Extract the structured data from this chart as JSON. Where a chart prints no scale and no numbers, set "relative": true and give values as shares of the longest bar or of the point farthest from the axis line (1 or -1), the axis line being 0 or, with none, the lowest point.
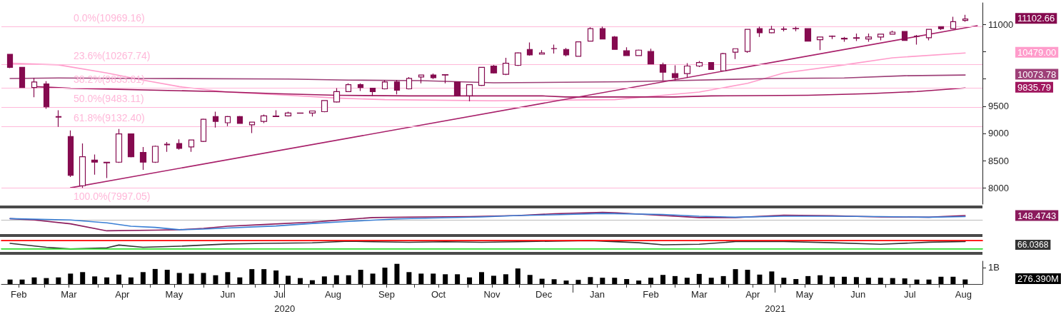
{
  "chart_data": [
    {
      "type": "candlestick",
      "color": "#850a4f",
      "tick_labels": "y",
      "xlim": [
        "2020-02-05",
        "2021-08-26"
      ],
      "ylim": [
        7700,
        11400
      ],
      "yticks": [
        8000,
        8500,
        9000,
        9500,
        {
          "value": 10000,
          "label": null
        },
        {
          "value": 10500,
          "label": null
        },
        11000
      ],
      "x": [
        "2020-02-10",
        "2020-02-17",
        "2020-02-24",
        "2020-03-02",
        "2020-03-09",
        "2020-03-16",
        "2020-03-23",
        "2020-03-30",
        "2020-04-06",
        "2020-04-13",
        "2020-04-20",
        "2020-04-27",
        "2020-05-04",
        "2020-05-11",
        "2020-05-18",
        "2020-05-25",
        "2020-06-01",
        "2020-06-08",
        "2020-06-15",
        "2020-06-22",
        "2020-06-29",
        "2020-07-06",
        "2020-07-13",
        "2020-07-20",
        "2020-07-27",
        "2020-08-03",
        "2020-08-10",
        "2020-08-17",
        "2020-08-24",
        "2020-08-31",
        "2020-09-07",
        "2020-09-14",
        "2020-09-21",
        "2020-09-28",
        "2020-10-05",
        "2020-10-12",
        "2020-10-19",
        "2020-10-26",
        "2020-11-02",
        "2020-11-09",
        "2020-11-16",
        "2020-11-23",
        "2020-11-30",
        "2020-12-07",
        "2020-12-14",
        "2020-12-21",
        "2020-12-28",
        "2021-01-04",
        "2021-01-11",
        "2021-01-18",
        "2021-01-25",
        "2021-02-01",
        "2021-02-08",
        "2021-02-15",
        "2021-02-22",
        "2021-03-01",
        "2021-03-08",
        "2021-03-15",
        "2021-03-22",
        "2021-03-29",
        "2021-04-05",
        "2021-04-12",
        "2021-04-19",
        "2021-04-26",
        "2021-05-03",
        "2021-05-10",
        "2021-05-17",
        "2021-05-24",
        "2021-05-31",
        "2021-06-07",
        "2021-06-14",
        "2021-06-21",
        "2021-06-28",
        "2021-07-05",
        "2021-07-12",
        "2021-07-19",
        "2021-07-26",
        "2021-08-02",
        "2021-08-09",
        "2021-08-16"
      ],
      "ohlc": [
        [
          10455,
          10460,
          10200,
          10213
        ],
        [
          10213,
          10220,
          9840,
          9844
        ],
        [
          9844,
          10023,
          9666,
          9946
        ],
        [
          9908,
          9959,
          9450,
          9488
        ],
        [
          9300,
          9425,
          9120,
          9310
        ],
        [
          8941,
          9056,
          8200,
          8229
        ],
        [
          8038,
          8814,
          7997,
          8572
        ],
        [
          8509,
          8611,
          8242,
          8471
        ],
        [
          8458,
          8470,
          8178,
          8470
        ],
        [
          8471,
          9081,
          8458,
          8992
        ],
        [
          8992,
          9000,
          8560,
          8572
        ],
        [
          8649,
          8750,
          8331,
          8471
        ],
        [
          8471,
          8775,
          8458,
          8763
        ],
        [
          8789,
          8840,
          8661,
          8800
        ],
        [
          8814,
          8890,
          8700,
          8725
        ],
        [
          8750,
          8880,
          8661,
          8878
        ],
        [
          8852,
          9270,
          8840,
          9259
        ],
        [
          9310,
          9400,
          9107,
          9221
        ],
        [
          9196,
          9320,
          9132,
          9310
        ],
        [
          9310,
          9320,
          9180,
          9183
        ],
        [
          9158,
          9215,
          9005,
          9208
        ],
        [
          9221,
          9345,
          9190,
          9323
        ],
        [
          9310,
          9425,
          9305,
          9320
        ],
        [
          9323,
          9400,
          9310,
          9374
        ],
        [
          9370,
          9380,
          9365,
          9374
        ],
        [
          9374,
          9415,
          9310,
          9412
        ],
        [
          9399,
          9610,
          9390,
          9603
        ],
        [
          9577,
          9832,
          9565,
          9768
        ],
        [
          9768,
          9920,
          9760,
          9895
        ],
        [
          9895,
          9920,
          9780,
          9844
        ],
        [
          9832,
          9840,
          9692,
          9768
        ],
        [
          9819,
          9980,
          9810,
          9946
        ],
        [
          9946,
          9984,
          9717,
          9793
        ],
        [
          9819,
          10036,
          9810,
          10010
        ],
        [
          10036,
          10080,
          9921,
          10074
        ],
        [
          10074,
          10100,
          10000,
          10023
        ],
        [
          10074,
          10086,
          9921,
          10080
        ],
        [
          9946,
          9950,
          9690,
          9692
        ],
        [
          9692,
          9900,
          9590,
          9895
        ],
        [
          9883,
          10220,
          9870,
          10213
        ],
        [
          10239,
          10260,
          10100,
          10112
        ],
        [
          10086,
          10390,
          10070,
          10290
        ],
        [
          10252,
          10490,
          10240,
          10480
        ],
        [
          10544,
          10671,
          10430,
          10442
        ],
        [
          10455,
          10531,
          10450,
          10480
        ],
        [
          10557,
          10633,
          10468,
          10560
        ],
        [
          10544,
          10570,
          10417,
          10442
        ],
        [
          10417,
          10690,
          10410,
          10684
        ],
        [
          10697,
          10950,
          10690,
          10926
        ],
        [
          10926,
          10964,
          10730,
          10735
        ],
        [
          10773,
          10790,
          10540,
          10544
        ],
        [
          10519,
          10582,
          10425,
          10430
        ],
        [
          10430,
          10540,
          10425,
          10531
        ],
        [
          10506,
          10557,
          10270,
          10277
        ],
        [
          10264,
          10302,
          9972,
          10124
        ],
        [
          10099,
          10251,
          9972,
          10023
        ],
        [
          10099,
          10290,
          10023,
          10239
        ],
        [
          10239,
          10330,
          10220,
          10302
        ],
        [
          10302,
          10310,
          10170,
          10175
        ],
        [
          10150,
          10480,
          10140,
          10468
        ],
        [
          10493,
          10560,
          10366,
          10557
        ],
        [
          10506,
          10920,
          10480,
          10913
        ],
        [
          10926,
          10964,
          10773,
          10850
        ],
        [
          10850,
          10977,
          10840,
          10913
        ],
        [
          10913,
          10964,
          10875,
          10920
        ],
        [
          10930,
          10964,
          10880,
          10926
        ],
        [
          10926,
          10930,
          10690,
          10697
        ],
        [
          10722,
          10780,
          10531,
          10773
        ],
        [
          10786,
          10800,
          10735,
          10790
        ],
        [
          10735,
          10773,
          10684,
          10748
        ],
        [
          10748,
          10837,
          10697,
          10760
        ],
        [
          10735,
          10837,
          10684,
          10773
        ],
        [
          10773,
          10830,
          10710,
          10824
        ],
        [
          10824,
          10888,
          10820,
          10862
        ],
        [
          10875,
          10880,
          10700,
          10710
        ],
        [
          10786,
          10811,
          10633,
          10790
        ],
        [
          10760,
          10920,
          10710,
          10913
        ],
        [
          10964,
          10970,
          10900,
          10926
        ],
        [
          10926,
          11143,
          10920,
          11053
        ],
        [
          11078,
          11180,
          11053,
          11102.66
        ]
      ],
      "series": [
        {
          "type": "line",
          "color": "#ff9ccb",
          "x": [
            "2020-02-10",
            "2020-03-09",
            "2020-04-06",
            "2020-04-27",
            "2020-05-18",
            "2020-06-15",
            "2020-07-20",
            "2020-08-17",
            "2020-09-14",
            "2020-11-16",
            "2021-01-25",
            "2021-03-01",
            "2021-03-15",
            "2021-04-12",
            "2021-05-03",
            "2021-06-07",
            "2021-07-05",
            "2021-08-16"
          ],
          "values": [
            10290,
            10260,
            10110,
            9980,
            9860,
            9760,
            9700,
            9650,
            9620,
            9600,
            9620,
            9720,
            9760,
            9920,
            10110,
            10260,
            10390,
            10479
          ]
        },
        {
          "type": "line",
          "color": "#9e4078",
          "x": [
            "2020-02-10",
            "2020-03-09",
            "2020-04-27",
            "2020-07-20",
            "2020-08-24",
            "2020-10-05",
            "2020-10-26",
            "2020-11-16",
            "2021-02-01",
            "2021-03-01",
            "2021-04-26",
            "2021-06-07",
            "2021-07-12",
            "2021-08-16"
          ],
          "values": [
            10010,
            10020,
            10010,
            10000,
            9980,
            9970,
            9950,
            9930,
            9950,
            9970,
            10010,
            10020,
            10060,
            10073.78
          ]
        },
        {
          "type": "line",
          "color": "#a0175e",
          "x": [
            "2020-02-24",
            "2020-03-16",
            "2020-06-08",
            "2020-07-13",
            "2020-08-17",
            "2020-09-28",
            "2020-12-14",
            "2020-12-28",
            "2021-03-01",
            "2021-03-22",
            "2021-05-17",
            "2021-06-21",
            "2021-07-19",
            "2021-08-16"
          ],
          "values": [
            9860,
            9830,
            9770,
            9730,
            9700,
            9690,
            9690,
            9670,
            9670,
            9690,
            9700,
            9730,
            9770,
            9835.79
          ]
        },
        {
          "type": "line",
          "color": "#a8206a",
          "x": [
            "2020-03-16",
            "2021-08-23"
          ],
          "values": [
            8000,
            10980
          ]
        }
      ],
      "ref_lines": [
        {
          "axis": "y",
          "value": 10969.16,
          "label": "0.0%(10969.16)",
          "color": "#ffb8d9"
        },
        {
          "axis": "y",
          "value": 10267.74,
          "label": "23.6%(10267.74)",
          "color": "#ffb8d9"
        },
        {
          "axis": "y",
          "value": 9833.81,
          "label": "38.2%(9833.81)",
          "color": "#ffb8d9"
        },
        {
          "axis": "y",
          "value": 9483.11,
          "label": "50.0%(9483.11)",
          "color": "#ffb8d9"
        },
        {
          "axis": "y",
          "value": 9132.4,
          "label": "61.8%(9132.40)",
          "color": "#ffb8d9"
        },
        {
          "axis": "y",
          "value": 7997.05,
          "label": "100.0%(7997.05)",
          "color": "#ffb8d9"
        }
      ],
      "annotations": [
        "11102.66",
        "10479.00",
        "10073.78",
        "9835.79"
      ]
    },
    {
      "type": "line",
      "relative": true,
      "tick_labels": false,
      "xlim": [
        "2020-02-05",
        "2021-08-26"
      ],
      "series": [
        {
          "color": "#8b1a5c",
          "x": [
            "2020-02-10",
            "2020-02-24",
            "2020-03-16",
            "2020-04-06",
            "2020-05-04",
            "2020-05-18",
            "2020-06-01",
            "2020-06-15",
            "2020-07-06",
            "2020-08-03",
            "2020-08-24",
            "2020-09-07",
            "2020-10-05",
            "2020-11-02",
            "2020-11-30",
            "2020-12-21",
            "2021-01-18",
            "2021-01-25",
            "2021-02-22",
            "2021-03-15",
            "2021-04-05",
            "2021-05-03",
            "2021-05-31",
            "2021-06-28",
            "2021-07-26",
            "2021-08-16"
          ],
          "values": [
            0.13,
            0,
            -0.35,
            -1,
            -0.94,
            -0.9,
            -0.77,
            -0.58,
            -0.42,
            -0.19,
            0.06,
            0.23,
            0.29,
            0.32,
            0.42,
            0.58,
            0.71,
            0.68,
            0.42,
            0.23,
            0.23,
            0.45,
            0.39,
            0.29,
            0.26,
            0.42
          ]
        },
        {
          "color": "#3a7fd5",
          "x": [
            "2020-02-10",
            "2020-03-16",
            "2020-04-06",
            "2020-04-20",
            "2020-05-04",
            "2020-05-18",
            "2020-06-01",
            "2020-06-15",
            "2020-07-13",
            "2020-08-03",
            "2020-08-24",
            "2020-09-21",
            "2020-10-12",
            "2020-11-09",
            "2020-11-30",
            "2020-12-21",
            "2021-01-18",
            "2021-02-22",
            "2021-03-15",
            "2021-04-05",
            "2021-05-03",
            "2021-05-31",
            "2021-06-28",
            "2021-07-26",
            "2021-08-16"
          ],
          "values": [
            0.13,
            0,
            -0.26,
            -0.58,
            -0.68,
            -0.9,
            -0.84,
            -0.74,
            -0.55,
            -0.32,
            -0.13,
            0.1,
            0.19,
            0.29,
            0.42,
            0.48,
            0.61,
            0.52,
            0.35,
            0.26,
            0.35,
            0.35,
            0.32,
            0.26,
            0.32
          ]
        }
      ],
      "annotations": [
        "148.4743"
      ]
    },
    {
      "type": "line",
      "relative": true,
      "tick_labels": false,
      "xlim": [
        "2020-02-05",
        "2021-08-26"
      ],
      "series": [
        {
          "color": "#333333",
          "x": [
            "2020-02-10",
            "2020-03-02",
            "2020-03-16",
            "2020-04-06",
            "2020-04-13",
            "2020-04-27",
            "2020-05-18",
            "2020-06-15",
            "2020-07-06",
            "2020-08-03",
            "2020-08-24",
            "2020-09-07",
            "2020-09-28",
            "2020-10-19",
            "2020-11-09",
            "2020-11-30",
            "2020-12-21",
            "2021-01-11",
            "2021-02-08",
            "2021-02-22",
            "2021-03-15",
            "2021-04-05",
            "2021-05-03",
            "2021-05-31",
            "2021-06-28",
            "2021-07-26",
            "2021-08-16"
          ],
          "values": [
            0.67,
            0.2,
            0,
            0.13,
            0.47,
            0.2,
            0.33,
            0.6,
            0.67,
            0.73,
            0.93,
            0.87,
            0.8,
            0.87,
            0.8,
            0.87,
            0.94,
            1,
            0.75,
            0.5,
            0.56,
            0.88,
            0.88,
            0.75,
            0.56,
            0.81,
            0.88
          ]
        },
        {
          "color": "#ff0000",
          "x": [
            "2020-02-05",
            "2021-08-26"
          ],
          "values": [
            1,
            1
          ]
        },
        {
          "color": "#33dd33",
          "x": [
            "2020-02-05",
            "2021-08-26"
          ],
          "values": [
            0,
            0
          ]
        }
      ],
      "annotations": [
        "66.0368"
      ]
    },
    {
      "type": "bar",
      "color": "#000000",
      "xlim": [
        "2020-02-05",
        "2021-08-26"
      ],
      "ylim": [
        0,
        1380000000
      ],
      "yticks": [
        {
          "value": 1000000000,
          "label": "1B"
        }
      ],
      "xticks": [
        {
          "value": "2020-02-15",
          "label": "Feb"
        },
        {
          "value": "2020-03-01",
          "label": null
        },
        {
          "value": "2020-03-15",
          "label": "Mar"
        },
        {
          "value": "2020-04-01",
          "label": null
        },
        {
          "value": "2020-04-15",
          "label": "Apr"
        },
        {
          "value": "2020-05-01",
          "label": null
        },
        {
          "value": "2020-05-15",
          "label": "May"
        },
        {
          "value": "2020-06-01",
          "label": null
        },
        {
          "value": "2020-06-15",
          "label": "Jun"
        },
        {
          "value": "2020-07-01",
          "label": null
        },
        {
          "value": "2020-07-15",
          "label": "Jul"
        },
        {
          "value": "2020-08-01",
          "label": null
        },
        {
          "value": "2020-08-15",
          "label": "Aug"
        },
        {
          "value": "2020-09-01",
          "label": null
        },
        {
          "value": "2020-09-15",
          "label": "Sep"
        },
        {
          "value": "2020-10-01",
          "label": null
        },
        {
          "value": "2020-10-15",
          "label": "Oct"
        },
        {
          "value": "2020-11-01",
          "label": null
        },
        {
          "value": "2020-11-15",
          "label": "Nov"
        },
        {
          "value": "2020-12-01",
          "label": null
        },
        {
          "value": "2020-12-15",
          "label": "Dec"
        },
        {
          "value": "2021-01-01",
          "label": null
        },
        {
          "value": "2021-01-15",
          "label": "Jan"
        },
        {
          "value": "2021-02-01",
          "label": null
        },
        {
          "value": "2021-02-15",
          "label": "Feb"
        },
        {
          "value": "2021-03-01",
          "label": null
        },
        {
          "value": "2021-03-15",
          "label": "Mar"
        },
        {
          "value": "2021-04-01",
          "label": null
        },
        {
          "value": "2021-04-15",
          "label": "Apr"
        },
        {
          "value": "2021-05-01",
          "label": null
        },
        {
          "value": "2021-05-15",
          "label": "May"
        },
        {
          "value": "2021-06-01",
          "label": null
        },
        {
          "value": "2021-06-15",
          "label": "Jun"
        },
        {
          "value": "2021-07-01",
          "label": null
        },
        {
          "value": "2021-07-15",
          "label": "Jul"
        },
        {
          "value": "2021-08-01",
          "label": null
        },
        {
          "value": "2021-08-15",
          "label": "Aug"
        }
      ],
      "x2lim": [
        "2020-02-05",
        "2021-08-26"
      ],
      "x2ticks": [
        {
          "value": "2020-07-18",
          "label": "2020"
        },
        {
          "value": "2021-01-01",
          "label": null
        },
        {
          "value": "2021-04-28",
          "label": "2021"
        }
      ],
      "x": [
        "2020-02-10",
        "2020-02-17",
        "2020-02-24",
        "2020-03-02",
        "2020-03-09",
        "2020-03-16",
        "2020-03-23",
        "2020-03-30",
        "2020-04-06",
        "2020-04-13",
        "2020-04-20",
        "2020-04-27",
        "2020-05-04",
        "2020-05-11",
        "2020-05-18",
        "2020-05-25",
        "2020-06-01",
        "2020-06-08",
        "2020-06-15",
        "2020-06-22",
        "2020-06-29",
        "2020-07-06",
        "2020-07-13",
        "2020-07-20",
        "2020-07-27",
        "2020-08-03",
        "2020-08-10",
        "2020-08-17",
        "2020-08-24",
        "2020-08-31",
        "2020-09-07",
        "2020-09-14",
        "2020-09-21",
        "2020-09-28",
        "2020-10-05",
        "2020-10-12",
        "2020-10-19",
        "2020-10-26",
        "2020-11-02",
        "2020-11-09",
        "2020-11-16",
        "2020-11-23",
        "2020-11-30",
        "2020-12-07",
        "2020-12-14",
        "2020-12-21",
        "2020-12-28",
        "2021-01-04",
        "2021-01-11",
        "2021-01-18",
        "2021-01-25",
        "2021-02-01",
        "2021-02-08",
        "2021-02-15",
        "2021-02-22",
        "2021-03-01",
        "2021-03-08",
        "2021-03-15",
        "2021-03-22",
        "2021-03-29",
        "2021-04-05",
        "2021-04-12",
        "2021-04-19",
        "2021-04-26",
        "2021-05-03",
        "2021-05-10",
        "2021-05-17",
        "2021-05-24",
        "2021-05-31",
        "2021-06-07",
        "2021-06-14",
        "2021-06-21",
        "2021-06-28",
        "2021-07-05",
        "2021-07-12",
        "2021-07-19",
        "2021-07-26",
        "2021-08-02",
        "2021-08-09",
        "2021-08-16"
      ],
      "values": [
        270000000,
        270000000,
        400000000,
        360000000,
        400000000,
        630000000,
        720000000,
        460000000,
        400000000,
        570000000,
        400000000,
        720000000,
        910000000,
        860000000,
        670000000,
        630000000,
        670000000,
        530000000,
        720000000,
        400000000,
        900000000,
        900000000,
        820000000,
        500000000,
        360000000,
        230000000,
        460000000,
        530000000,
        530000000,
        860000000,
        630000000,
        990000000,
        1220000000,
        720000000,
        630000000,
        630000000,
        590000000,
        590000000,
        400000000,
        720000000,
        500000000,
        590000000,
        940000000,
        550000000,
        320000000,
        290000000,
        210000000,
        250000000,
        420000000,
        380000000,
        380000000,
        300000000,
        210000000,
        380000000,
        550000000,
        480000000,
        380000000,
        610000000,
        380000000,
        480000000,
        900000000,
        860000000,
        570000000,
        760000000,
        380000000,
        300000000,
        480000000,
        530000000,
        440000000,
        440000000,
        420000000,
        380000000,
        380000000,
        360000000,
        340000000,
        270000000,
        270000000,
        440000000,
        440000000,
        276390000
      ],
      "annotations": [
        "276.390M"
      ]
    }
  ]
}
